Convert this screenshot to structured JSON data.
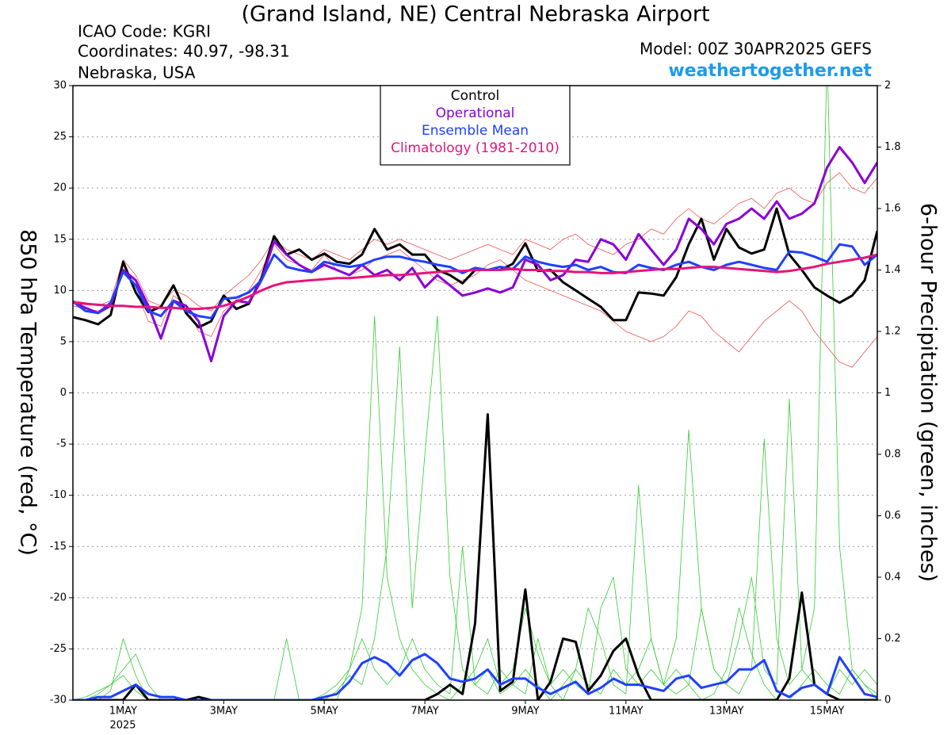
{
  "chart_data": {
    "type": "line",
    "title": "(Grand Island, NE) Central Nebraska Airport",
    "info": [
      "ICAO Code: KGRI",
      "Coordinates: 40.97, -98.31",
      "Nebraska, USA"
    ],
    "model": "Model: 00Z 30APR2025 GEFS",
    "site": "weathertogether.net",
    "ylabel": "850 hPa Temperature (red, °C)",
    "y2label": "6-hour Precipitation (green, inches)",
    "year_label": "2025",
    "x": [
      0,
      0.25,
      0.5,
      0.75,
      1,
      1.25,
      1.5,
      1.75,
      2,
      2.25,
      2.5,
      2.75,
      3,
      3.25,
      3.5,
      3.75,
      4,
      4.25,
      4.5,
      4.75,
      5,
      5.25,
      5.5,
      5.75,
      6,
      6.25,
      6.5,
      6.75,
      7,
      7.25,
      7.5,
      7.75,
      8,
      8.25,
      8.5,
      8.75,
      9,
      9.25,
      9.5,
      9.75,
      10,
      10.25,
      10.5,
      10.75,
      11,
      11.25,
      11.5,
      11.75,
      12,
      12.25,
      12.5,
      12.75,
      13,
      13.25,
      13.5,
      13.75,
      14,
      14.25,
      14.5,
      14.75,
      15,
      15.25,
      15.5,
      15.75,
      16
    ],
    "xlim": [
      0,
      16
    ],
    "xticks": [
      {
        "value": 1,
        "label": "1MAY"
      },
      {
        "value": 3,
        "label": "3MAY"
      },
      {
        "value": 5,
        "label": "5MAY"
      },
      {
        "value": 7,
        "label": "7MAY"
      },
      {
        "value": 9,
        "label": "9MAY"
      },
      {
        "value": 11,
        "label": "11MAY"
      },
      {
        "value": 13,
        "label": "13MAY"
      },
      {
        "value": 15,
        "label": "15MAY"
      }
    ],
    "ylim": [
      -30,
      30
    ],
    "yticks": [
      -30,
      -25,
      -20,
      -15,
      -10,
      -5,
      0,
      5,
      10,
      15,
      20,
      25,
      30
    ],
    "y2lim": [
      0,
      2
    ],
    "y2ticks": [
      0,
      0.2,
      0.4,
      0.6,
      0.8,
      1,
      1.2,
      1.4,
      1.6,
      1.8,
      2
    ],
    "grid": true,
    "series": [
      {
        "color": "#f05050",
        "values": [
          8.5,
          8.2,
          8.0,
          8.6,
          12.5,
          10.0,
          7.0,
          6.5,
          9.5,
          8.5,
          6.0,
          5.5,
          8.0,
          9.0,
          10.0,
          12.0,
          14.5,
          13.0,
          12.5,
          12.0,
          13.5,
          12.0,
          11.5,
          12.0,
          13.0,
          13.5,
          14.0,
          13.0,
          12.0,
          11.0,
          10.5,
          11.0,
          11.5,
          12.5,
          13.0,
          12.0,
          11.0,
          10.5,
          10.0,
          9.5,
          9.0,
          8.5,
          8.0,
          7.0,
          6.0,
          5.5,
          5.0,
          5.5,
          6.5,
          8.0,
          7.5,
          6.0,
          5.0,
          4.0,
          5.5,
          7.0,
          8.0,
          9.0,
          8.0,
          6.0,
          4.5,
          3.0,
          2.5,
          4.0,
          5.5
        ]
      },
      {
        "color": "#f05050",
        "values": [
          9.0,
          8.8,
          8.5,
          9.0,
          13.0,
          11.5,
          9.0,
          8.5,
          10.0,
          9.5,
          8.5,
          8.0,
          9.5,
          10.5,
          11.5,
          13.0,
          15.0,
          14.0,
          13.5,
          13.0,
          14.0,
          13.5,
          13.0,
          14.0,
          15.0,
          14.5,
          15.0,
          14.5,
          14.0,
          13.5,
          13.0,
          13.5,
          14.0,
          14.5,
          14.0,
          13.5,
          15.0,
          14.5,
          14.0,
          15.0,
          15.5,
          14.5,
          14.0,
          13.5,
          14.5,
          15.0,
          16.0,
          15.5,
          17.0,
          18.0,
          17.0,
          16.5,
          17.5,
          18.5,
          19.0,
          18.0,
          19.5,
          20.0,
          19.0,
          18.5,
          20.5,
          21.5,
          20.0,
          19.5,
          21.0
        ]
      },
      {
        "color": "#33cc33",
        "axis": "y2",
        "values": [
          0,
          0,
          0.02,
          0.05,
          0.1,
          0.15,
          0.05,
          0,
          0,
          0,
          0,
          0,
          0,
          0,
          0,
          0,
          0,
          0,
          0,
          0,
          0.02,
          0.05,
          0.1,
          0.3,
          1.25,
          0.4,
          0.2,
          0.1,
          0.05,
          0.02,
          0,
          0.05,
          0.1,
          0.2,
          0.05,
          0.1,
          0.3,
          0.15,
          0.05,
          0,
          0.1,
          0.3,
          0.2,
          0.05,
          0.02,
          0.7,
          0.2,
          0.05,
          0.1,
          0.05,
          0,
          0.02,
          0.1,
          0.3,
          0.15,
          0.05,
          0,
          0,
          0.05,
          0.1,
          0.05,
          0.02,
          0.1,
          0.05,
          0
        ]
      },
      {
        "color": "#33cc33",
        "axis": "y2",
        "values": [
          0,
          0,
          0,
          0.03,
          0.2,
          0.08,
          0,
          0,
          0,
          0,
          0,
          0,
          0,
          0,
          0,
          0,
          0,
          0,
          0,
          0,
          0,
          0.03,
          0.08,
          0.05,
          0.2,
          0.5,
          1.15,
          0.3,
          0.8,
          1.25,
          0.4,
          0.1,
          0.05,
          0.02,
          0.1,
          0.05,
          0.02,
          0.2,
          0.05,
          0.1,
          0.05,
          0.02,
          0.3,
          0.4,
          0.1,
          0.05,
          0.1,
          0.05,
          0.2,
          0.88,
          0.3,
          0.1,
          0.05,
          0.2,
          0.4,
          0.1,
          0.05,
          0.98,
          0.1,
          0.05,
          0.02,
          0.1,
          0.05,
          0.1,
          0.05
        ]
      },
      {
        "color": "#33cc33",
        "axis": "y2",
        "values": [
          0,
          0.01,
          0.03,
          0.05,
          0.08,
          0.03,
          0,
          0,
          0,
          0,
          0,
          0,
          0,
          0,
          0,
          0,
          0,
          0.2,
          0,
          0,
          0,
          0,
          0.1,
          0.2,
          0.1,
          0.05,
          0.1,
          0.2,
          0.1,
          0.05,
          0.02,
          0.5,
          0.05,
          0.1,
          0.02,
          0.05,
          0.1,
          0.05,
          0,
          0.05,
          0.1,
          0.05,
          0.02,
          0.1,
          0.05,
          0.1,
          0.2,
          0.05,
          0.02,
          0.05,
          0.3,
          0.1,
          0.05,
          0.02,
          0.1,
          0.85,
          0.2,
          0.05,
          0.1,
          0.3,
          2.1,
          0.5,
          0.1,
          0.05,
          0.02
        ]
      },
      {
        "color": "#000000",
        "axis": "y2",
        "values": [
          0,
          0,
          0,
          0,
          0,
          0.05,
          0,
          0,
          0,
          0,
          0.01,
          0,
          0,
          0,
          0,
          0,
          0,
          0,
          0,
          0,
          0,
          0,
          0,
          0,
          0,
          0,
          0,
          0,
          0,
          0.02,
          0.05,
          0.02,
          0.25,
          0.93,
          0.03,
          0.06,
          0.36,
          0,
          0.06,
          0.2,
          0.19,
          0.03,
          0.08,
          0.16,
          0.2,
          0.08,
          0,
          0,
          0,
          0,
          0,
          0,
          0,
          0,
          0,
          0,
          0,
          0.07,
          0.35,
          0.05,
          0.02,
          0,
          0,
          0,
          0
        ]
      },
      {
        "color": "#2040ff",
        "axis": "y2",
        "values": [
          0,
          0,
          0.01,
          0.01,
          0.03,
          0.05,
          0.02,
          0.01,
          0.01,
          0,
          0,
          0,
          0,
          0,
          0,
          0,
          0,
          0,
          0,
          0,
          0.01,
          0.02,
          0.06,
          0.12,
          0.14,
          0.12,
          0.08,
          0.13,
          0.15,
          0.12,
          0.07,
          0.06,
          0.07,
          0.1,
          0.05,
          0.07,
          0.07,
          0.04,
          0.02,
          0.04,
          0.06,
          0.02,
          0.04,
          0.07,
          0.05,
          0.05,
          0.04,
          0.03,
          0.07,
          0.08,
          0.04,
          0.05,
          0.06,
          0.1,
          0.1,
          0.13,
          0.03,
          0.01,
          0.04,
          0.05,
          0.02,
          0.14,
          0.08,
          0.02,
          0.01
        ]
      },
      {
        "name": "Control",
        "color": "#000000",
        "values": [
          7.4,
          7.1,
          6.7,
          7.6,
          12.8,
          9.8,
          7.9,
          8.4,
          10.5,
          7.8,
          6.4,
          7.0,
          9.5,
          8.2,
          8.7,
          11.2,
          15.3,
          13.5,
          14.0,
          13.0,
          13.6,
          12.8,
          12.6,
          13.5,
          16.0,
          14.0,
          14.5,
          13.5,
          13.5,
          12.0,
          11.5,
          10.7,
          12.0,
          12.0,
          12.0,
          12.6,
          14.6,
          11.9,
          12.0,
          10.8,
          10.0,
          9.2,
          8.4,
          7.1,
          7.1,
          9.8,
          9.7,
          9.5,
          11.3,
          14.5,
          17.0,
          13.0,
          16.0,
          14.2,
          13.6,
          14.0,
          18.0,
          13.5,
          12.0,
          10.3,
          9.5,
          8.8,
          9.5,
          11.0,
          15.8
        ]
      },
      {
        "name": "Operational",
        "color": "#8a00d4",
        "values": [
          8.9,
          8.3,
          7.8,
          8.5,
          12.0,
          11.0,
          8.5,
          5.3,
          9.0,
          8.5,
          7.0,
          3.1,
          7.5,
          9.0,
          8.8,
          11.0,
          14.8,
          13.5,
          12.5,
          11.8,
          12.5,
          12.0,
          11.5,
          12.5,
          11.5,
          12.0,
          11.0,
          12.2,
          10.3,
          11.5,
          10.5,
          9.5,
          9.8,
          10.2,
          9.8,
          10.3,
          13.0,
          12.5,
          11.0,
          11.5,
          13.0,
          12.8,
          15.0,
          14.5,
          13.0,
          15.5,
          14.0,
          12.5,
          14.0,
          17.0,
          16.0,
          14.5,
          16.5,
          17.0,
          18.0,
          17.0,
          18.7,
          17.0,
          17.5,
          18.5,
          22.0,
          24.0,
          22.5,
          20.5,
          22.5
        ]
      },
      {
        "name": "Ensemble Mean",
        "color": "#2040ff",
        "values": [
          8.9,
          8.0,
          7.8,
          8.8,
          11.8,
          10.5,
          8.0,
          7.5,
          9.0,
          8.0,
          7.5,
          7.3,
          9.2,
          9.3,
          9.8,
          11.0,
          13.5,
          12.3,
          12.0,
          11.8,
          12.8,
          12.5,
          12.3,
          12.5,
          13.0,
          13.3,
          13.3,
          13.0,
          12.8,
          12.5,
          12.3,
          11.7,
          12.2,
          12.0,
          12.3,
          12.1,
          13.3,
          12.8,
          12.5,
          12.3,
          12.5,
          12.0,
          12.3,
          11.8,
          11.7,
          12.5,
          12.2,
          12.0,
          12.5,
          12.8,
          12.3,
          12.0,
          12.5,
          12.8,
          12.5,
          12.2,
          12.0,
          13.8,
          13.7,
          13.3,
          12.8,
          14.5,
          14.3,
          12.5,
          13.5
        ]
      },
      {
        "name": "Climatology (1981-2010)",
        "color": "#e6147a",
        "values": [
          8.8,
          8.7,
          8.6,
          8.5,
          8.5,
          8.4,
          8.4,
          8.3,
          8.3,
          8.2,
          8.2,
          8.3,
          8.5,
          8.9,
          9.4,
          10.0,
          10.5,
          10.8,
          10.9,
          11.0,
          11.1,
          11.2,
          11.2,
          11.3,
          11.4,
          11.5,
          11.5,
          11.6,
          11.7,
          11.8,
          11.9,
          11.9,
          12.0,
          12.0,
          12.0,
          12.1,
          12.0,
          12.0,
          11.9,
          11.9,
          11.8,
          11.8,
          11.7,
          11.7,
          11.8,
          11.9,
          12.0,
          12.1,
          12.1,
          12.2,
          12.3,
          12.3,
          12.2,
          12.1,
          12.0,
          11.9,
          11.8,
          11.9,
          12.1,
          12.3,
          12.6,
          12.8,
          13.0,
          13.2,
          13.5
        ]
      }
    ]
  }
}
